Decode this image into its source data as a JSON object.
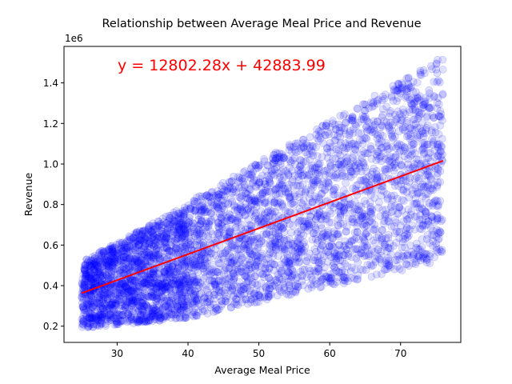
{
  "chart_data": {
    "type": "scatter",
    "title": "Relationship between Average Meal Price and Revenue",
    "xlabel": "Average Meal Price",
    "ylabel": "Revenue",
    "xlim": [
      22.5,
      78.5
    ],
    "ylim": [
      120000,
      1580000
    ],
    "x_ticks": [
      30,
      40,
      50,
      60,
      70
    ],
    "y_ticks": [
      200000,
      400000,
      600000,
      800000,
      1000000,
      1200000,
      1400000
    ],
    "y_tick_labels": [
      "0.2",
      "0.4",
      "0.6",
      "0.8",
      "1.0",
      "1.2",
      "1.4"
    ],
    "y_offset_label": "1e6",
    "grid": false,
    "point_color": "#0000ff",
    "point_alpha": 0.12,
    "regression": {
      "slope": 12802.28,
      "intercept": 42883.99,
      "x_range": [
        25,
        76
      ],
      "color": "#ff0000",
      "equation_label": "y = 12802.28x + 42883.99"
    },
    "point_bands": [
      {
        "x_range": [
          25,
          40
        ],
        "y_min_at_start": 190000,
        "y_min_at_end": 240000,
        "y_max_at_start": 520000,
        "y_max_at_end": 800000,
        "count": 1700
      },
      {
        "x_range": [
          40,
          76
        ],
        "y_min_at_start": 240000,
        "y_min_at_end": 520000,
        "y_max_at_start": 810000,
        "y_max_at_end": 1530000,
        "count": 2600
      }
    ]
  }
}
